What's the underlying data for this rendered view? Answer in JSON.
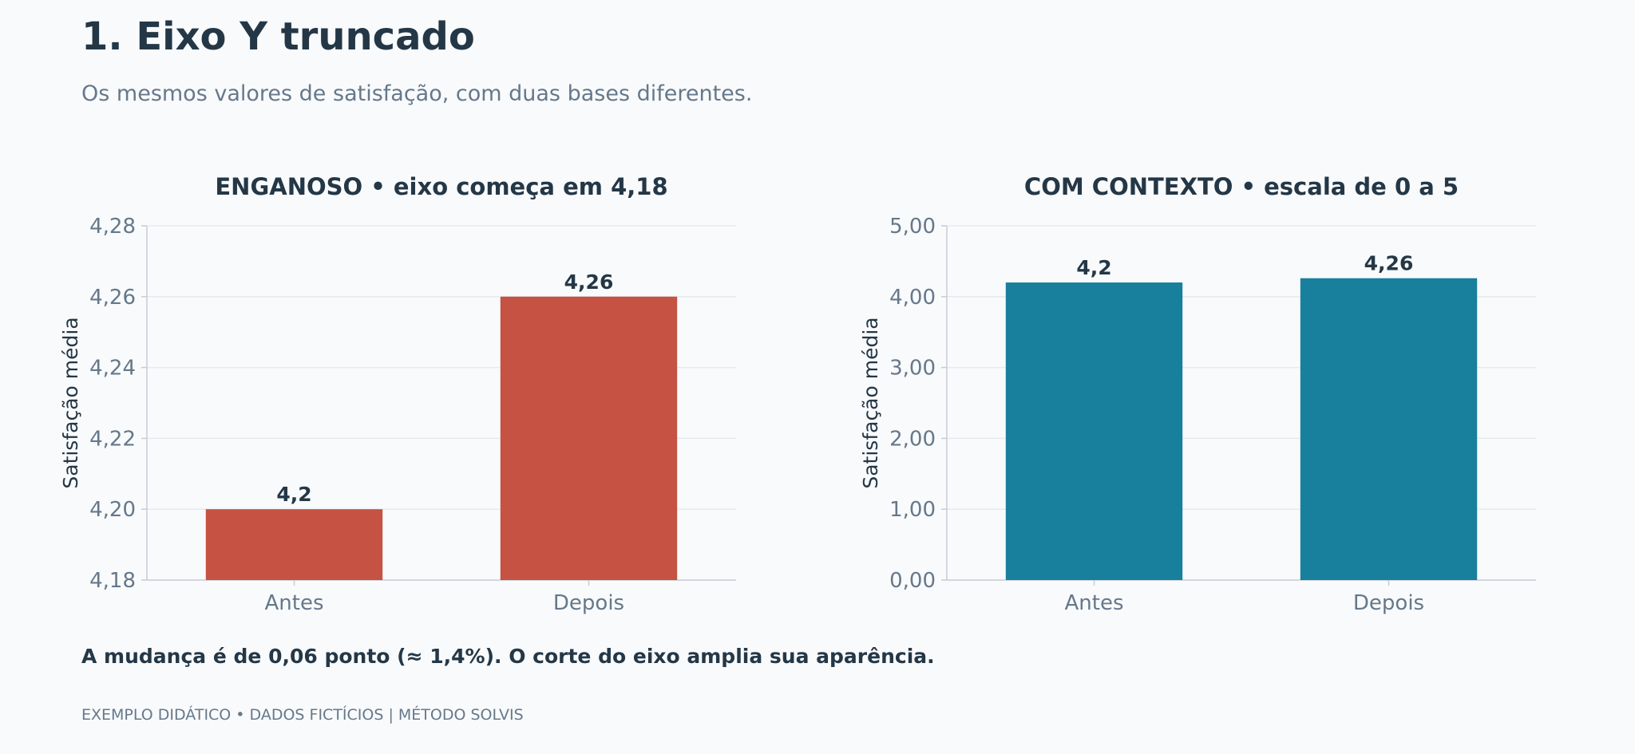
{
  "header": {
    "title": "1. Eixo Y truncado",
    "subtitle": "Os mesmos valores de satisfação, com duas bases diferentes."
  },
  "note": "A mudança é de 0,06 ponto (≈ 1,4%). O corte do eixo amplia sua aparência.",
  "footer": "EXEMPLO DIDÁTICO • DADOS FICTÍCIOS | MÉTODO SOLVIS",
  "chart_data": [
    {
      "type": "bar",
      "title": "ENGANOSO • eixo começa em 4,18",
      "ylabel": "Satisfação média",
      "xlabel": "",
      "categories": [
        "Antes",
        "Depois"
      ],
      "values": [
        4.2,
        4.26
      ],
      "value_labels": [
        "4,2",
        "4,26"
      ],
      "ylim": [
        4.18,
        4.28
      ],
      "yticks": [
        4.18,
        4.2,
        4.22,
        4.24,
        4.26,
        4.28
      ],
      "ytick_labels": [
        "4,18",
        "4,20",
        "4,22",
        "4,24",
        "4,26",
        "4,28"
      ],
      "color": "#c55243",
      "grid": true
    },
    {
      "type": "bar",
      "title": "COM CONTEXTO • escala de 0 a 5",
      "ylabel": "Satisfação média",
      "xlabel": "",
      "categories": [
        "Antes",
        "Depois"
      ],
      "values": [
        4.2,
        4.26
      ],
      "value_labels": [
        "4,2",
        "4,26"
      ],
      "ylim": [
        0,
        5
      ],
      "yticks": [
        0,
        1,
        2,
        3,
        4,
        5
      ],
      "ytick_labels": [
        "0,00",
        "1,00",
        "2,00",
        "3,00",
        "4,00",
        "5,00"
      ],
      "color": "#187f9c",
      "grid": true
    }
  ]
}
